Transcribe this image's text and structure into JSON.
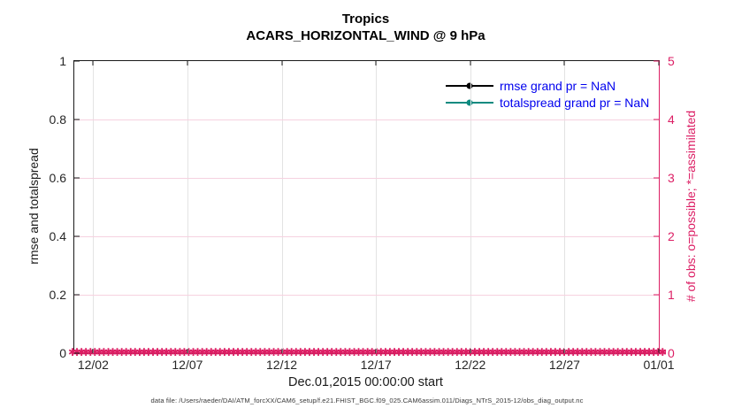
{
  "figure": {
    "title": "Tropics",
    "subtitle": "ACARS_HORIZONTAL_WIND @ 9 hPa",
    "xlabel": "Dec.01,2015 00:00:00 start",
    "footer": "data file: /Users/raeder/DAI/ATM_forcXX/CAM6_setup/f.e21.FHIST_BGC.f09_025.CAM6assim.011/Diags_NTrS_2015-12/obs_diag_output.nc"
  },
  "legend": {
    "text_color": "#0000ee",
    "entries": [
      {
        "label": "rmse grand pr = NaN",
        "color": "#000000"
      },
      {
        "label": "totalspread grand pr = NaN",
        "color": "#0e8a80"
      }
    ]
  },
  "chart_data": {
    "type": "line",
    "title": "Tropics",
    "subtitle": "ACARS_HORIZONTAL_WIND @ 9 hPa",
    "xlabel": "Dec.01,2015 00:00:00 start",
    "ylabel_left": "rmse and totalspread",
    "ylabel_right": "# of obs: o=possible; *=assimilated",
    "ylim_left": [
      0,
      1
    ],
    "ylim_right": [
      0,
      5
    ],
    "x_range": [
      "2015-12-01 00:00",
      "2016-01-01 00:00"
    ],
    "grid": "on",
    "legend_position": "top-right-inside",
    "x_ticks": [
      {
        "label": "12/02",
        "pos": 0.0323
      },
      {
        "label": "12/07",
        "pos": 0.1935
      },
      {
        "label": "12/12",
        "pos": 0.3548
      },
      {
        "label": "12/17",
        "pos": 0.5161
      },
      {
        "label": "12/22",
        "pos": 0.6774
      },
      {
        "label": "12/27",
        "pos": 0.8387
      },
      {
        "label": "01/01",
        "pos": 1.0
      }
    ],
    "y_ticks_left": [
      {
        "label": "0",
        "pos": 0.0
      },
      {
        "label": "0.2",
        "pos": 0.2
      },
      {
        "label": "0.4",
        "pos": 0.4
      },
      {
        "label": "0.6",
        "pos": 0.6
      },
      {
        "label": "0.8",
        "pos": 0.8
      },
      {
        "label": "1",
        "pos": 1.0
      }
    ],
    "y_ticks_right": [
      {
        "label": "0",
        "pos": 0.0
      },
      {
        "label": "1",
        "pos": 0.2
      },
      {
        "label": "2",
        "pos": 0.4
      },
      {
        "label": "3",
        "pos": 0.6
      },
      {
        "label": "4",
        "pos": 0.8
      },
      {
        "label": "5",
        "pos": 1.0
      }
    ],
    "series": [
      {
        "name": "rmse grand pr",
        "value": "NaN",
        "color": "#000000",
        "marker": "circle"
      },
      {
        "name": "totalspread grand pr",
        "value": "NaN",
        "color": "#0e8a80",
        "marker": "circle"
      }
    ],
    "obs_counts": {
      "possible": 0,
      "assimilated": 0,
      "note": "o and * markers plotted at y=0 across entire time axis",
      "marker_color": "#dc1e64"
    },
    "obs_marker": {
      "glyph": "✱",
      "repeat": 220
    },
    "colors": {
      "right_axis": "#dc1e64",
      "h_grid": "#f6d2e0",
      "v_grid": "#e3e3e3",
      "spine": "#1a1a1a",
      "legend_text": "#0000ee"
    }
  }
}
